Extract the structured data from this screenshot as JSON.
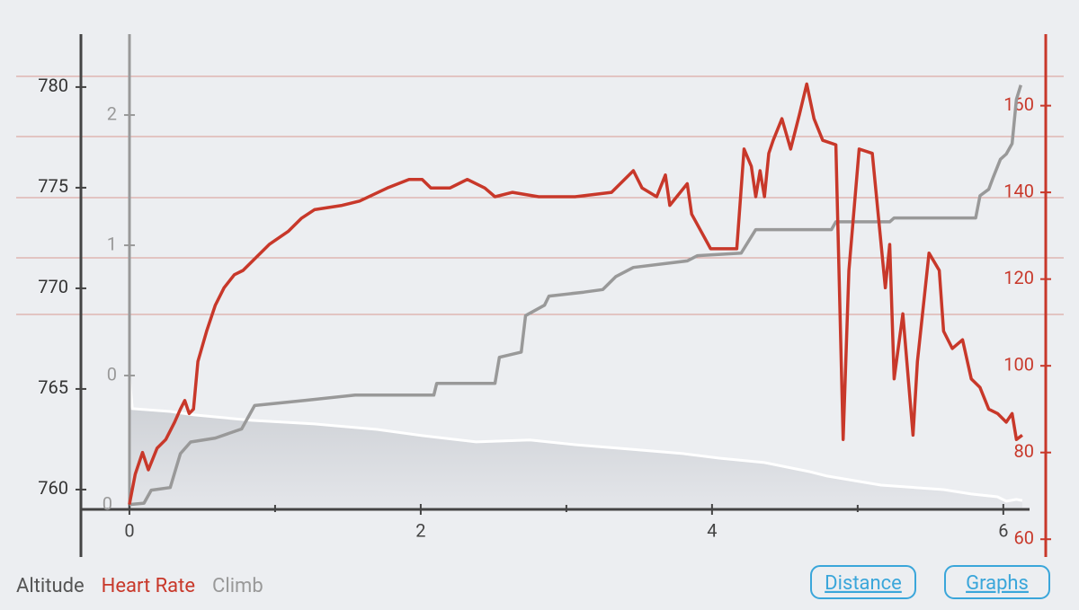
{
  "chart_data": {
    "type": "line",
    "xlim": [
      -0.333,
      6.18
    ],
    "xticks": [
      0,
      2,
      4,
      6
    ],
    "xminorticks": [
      1,
      3,
      5
    ],
    "ylim": [
      756.65,
      782.63
    ],
    "yticks": [
      760,
      765,
      770,
      775,
      780
    ],
    "y2lim": [
      55.9,
      176.5
    ],
    "y2ticks": [
      60,
      80,
      100,
      120,
      140,
      160
    ],
    "y3lim": [
      -1.393,
      2.621
    ],
    "y3ticks": [
      0,
      1,
      2
    ],
    "annotations": [
      {
        "text": "0"
      }
    ],
    "series": [
      {
        "name": "Altitude",
        "color": "#555555",
        "axis": "y",
        "x": [
          0,
          0.02,
          0.28,
          0.44,
          0.84,
          1.27,
          1.7,
          2.01,
          2.38,
          2.75,
          3.06,
          3.43,
          3.8,
          4.05,
          4.36,
          4.67,
          4.79,
          5.16,
          5.59,
          5.78,
          5.96,
          6.02,
          6.09,
          6.13
        ],
        "values": [
          765.58,
          764.02,
          763.88,
          763.71,
          763.44,
          763.26,
          762.99,
          762.68,
          762.37,
          762.46,
          762.23,
          762.01,
          761.79,
          761.56,
          761.34,
          760.89,
          760.67,
          760.22,
          760,
          759.78,
          759.64,
          759.42,
          759.51,
          759.46
        ]
      },
      {
        "name": "Heart Rate",
        "color": "#c8382a",
        "axis": "y2",
        "x": [
          0,
          0.04,
          0.09,
          0.13,
          0.19,
          0.25,
          0.31,
          0.35,
          0.38,
          0.41,
          0.44,
          0.47,
          0.53,
          0.59,
          0.65,
          0.72,
          0.78,
          0.87,
          0.96,
          1.09,
          1.18,
          1.27,
          1.46,
          1.58,
          1.77,
          1.92,
          2.01,
          2.07,
          2.2,
          2.32,
          2.44,
          2.51,
          2.63,
          2.81,
          3.06,
          3.31,
          3.46,
          3.52,
          3.62,
          3.68,
          3.71,
          3.83,
          3.86,
          3.99,
          4.17,
          4.22,
          4.27,
          4.3,
          4.33,
          4.36,
          4.39,
          4.42,
          4.48,
          4.54,
          4.6,
          4.65,
          4.7,
          4.76,
          4.85,
          4.9,
          4.94,
          5.01,
          5.1,
          5.19,
          5.22,
          5.25,
          5.31,
          5.38,
          5.41,
          5.49,
          5.56,
          5.59,
          5.65,
          5.72,
          5.78,
          5.84,
          5.9,
          5.96,
          6.02,
          6.06,
          6.09,
          6.13
        ],
        "values": [
          68,
          75,
          80,
          76,
          81,
          83,
          87,
          90,
          92,
          89,
          90,
          101,
          108,
          114,
          118,
          121,
          122,
          125,
          128,
          131,
          134,
          136,
          137,
          138,
          141,
          143,
          143,
          141,
          141,
          143,
          141,
          139,
          140,
          139,
          139,
          140,
          145,
          141,
          139,
          144,
          137,
          142,
          135,
          127,
          127,
          150,
          146,
          139,
          145,
          139,
          149,
          152,
          157,
          150,
          158,
          165,
          157,
          152,
          151,
          83,
          122,
          150,
          149,
          118,
          128,
          97,
          112,
          84,
          101,
          126,
          122,
          108,
          104,
          106,
          97,
          95,
          90,
          89,
          87,
          89,
          83,
          84
        ]
      },
      {
        "name": "Climb",
        "color": "#999999",
        "axis": "y3",
        "x": [
          0,
          0.1,
          0.15,
          0.28,
          0.35,
          0.42,
          0.59,
          0.77,
          0.86,
          1.21,
          1.55,
          2.09,
          2.11,
          2.51,
          2.54,
          2.69,
          2.72,
          2.85,
          2.88,
          3.12,
          3.25,
          3.34,
          3.46,
          3.83,
          3.9,
          4.2,
          4.3,
          4.82,
          4.85,
          5.22,
          5.25,
          5.81,
          5.84,
          5.9,
          5.93,
          5.98,
          6.02,
          6.06,
          6.09,
          6.12
        ],
        "values": [
          -0.99,
          -0.98,
          -0.88,
          -0.86,
          -0.6,
          -0.51,
          -0.48,
          -0.41,
          -0.23,
          -0.19,
          -0.15,
          -0.15,
          -0.06,
          -0.06,
          0.14,
          0.18,
          0.46,
          0.54,
          0.61,
          0.64,
          0.66,
          0.76,
          0.83,
          0.88,
          0.92,
          0.94,
          1.12,
          1.12,
          1.18,
          1.18,
          1.21,
          1.21,
          1.38,
          1.43,
          1.52,
          1.66,
          1.7,
          1.78,
          2.12,
          2.23
        ]
      }
    ]
  },
  "buttons": [
    "Distance",
    "Graphs"
  ]
}
